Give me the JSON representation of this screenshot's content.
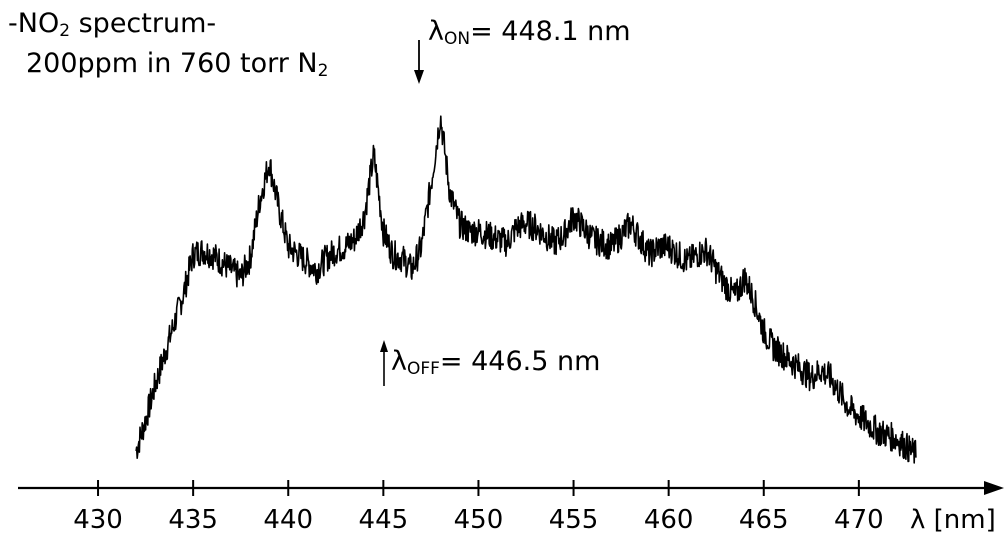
{
  "chart_data": {
    "type": "line",
    "title": "",
    "title_line1": {
      "prefix": "-NO",
      "sub": "2",
      "suffix": " spectrum-"
    },
    "title_line2": {
      "prefix": "200ppm in 760 torr N",
      "sub": "2"
    },
    "xlabel": "λ [nm]",
    "ylabel": "",
    "xlim": [
      428,
      477
    ],
    "ylim": [
      0,
      1
    ],
    "x_ticks": [
      430,
      435,
      440,
      445,
      450,
      455,
      460,
      465,
      470
    ],
    "y_axis_shown": false,
    "grid": false,
    "annotations": [
      {
        "id": "on",
        "symbol": "λ",
        "sub": "ON",
        "text": "= 448.1 nm",
        "x": 448.1,
        "arrow": "down"
      },
      {
        "id": "off",
        "symbol": "λ",
        "sub": "OFF",
        "text": "= 446.5 nm",
        "x": 446.5,
        "arrow": "up"
      }
    ],
    "series": [
      {
        "x": [
          432.0,
          432.5,
          433.0,
          433.5,
          434.0,
          434.5,
          435.0,
          435.5,
          436.0,
          436.5,
          437.0,
          437.5,
          438.0,
          438.5,
          439.0,
          439.5,
          440.0,
          440.5,
          441.0,
          441.5,
          442.0,
          442.5,
          443.0,
          443.5,
          444.0,
          444.5,
          445.0,
          445.5,
          446.0,
          446.5,
          447.0,
          447.5,
          448.0,
          448.5,
          449.0,
          449.5,
          450.0,
          450.5,
          451.0,
          451.5,
          452.0,
          452.5,
          453.0,
          453.5,
          454.0,
          454.5,
          455.0,
          455.5,
          456.0,
          456.5,
          457.0,
          457.5,
          458.0,
          458.5,
          459.0,
          459.5,
          460.0,
          460.5,
          461.0,
          461.5,
          462.0,
          462.5,
          463.0,
          463.5,
          464.0,
          464.5,
          465.0,
          465.5,
          466.0,
          466.5,
          467.0,
          467.5,
          468.0,
          468.5,
          469.0,
          469.5,
          470.0,
          470.5,
          471.0,
          471.5,
          472.0,
          472.5,
          473.0
        ],
        "y": [
          0.05,
          0.13,
          0.22,
          0.3,
          0.38,
          0.46,
          0.56,
          0.57,
          0.56,
          0.54,
          0.52,
          0.5,
          0.55,
          0.7,
          0.8,
          0.68,
          0.58,
          0.56,
          0.54,
          0.52,
          0.55,
          0.57,
          0.58,
          0.6,
          0.66,
          0.82,
          0.62,
          0.56,
          0.55,
          0.52,
          0.58,
          0.74,
          0.92,
          0.72,
          0.64,
          0.62,
          0.62,
          0.61,
          0.6,
          0.59,
          0.63,
          0.64,
          0.63,
          0.61,
          0.59,
          0.61,
          0.66,
          0.63,
          0.6,
          0.59,
          0.58,
          0.61,
          0.64,
          0.6,
          0.56,
          0.58,
          0.58,
          0.56,
          0.54,
          0.56,
          0.57,
          0.52,
          0.48,
          0.45,
          0.5,
          0.44,
          0.36,
          0.32,
          0.3,
          0.28,
          0.26,
          0.24,
          0.26,
          0.24,
          0.2,
          0.16,
          0.14,
          0.12,
          0.1,
          0.09,
          0.08,
          0.06,
          0.04
        ]
      }
    ]
  }
}
